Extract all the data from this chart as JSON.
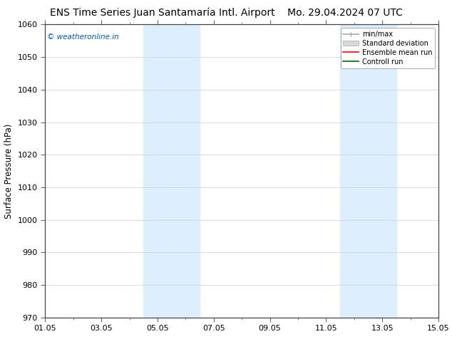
{
  "title_left": "ENS Time Series Juan Santamaría Intl. Airport",
  "title_right": "Mo. 29.04.2024 07 UTC",
  "ylabel": "Surface Pressure (hPa)",
  "xlabel": "",
  "ylim": [
    970,
    1060
  ],
  "xlim": [
    0,
    14
  ],
  "yticks": [
    970,
    980,
    990,
    1000,
    1010,
    1020,
    1030,
    1040,
    1050,
    1060
  ],
  "xtick_major_positions": [
    0,
    2,
    4,
    6,
    8,
    10,
    12,
    14
  ],
  "xtick_minor_positions": [
    0,
    1,
    2,
    3,
    4,
    5,
    6,
    7,
    8,
    9,
    10,
    11,
    12,
    13,
    14
  ],
  "xtick_labels": [
    "01.05",
    "03.05",
    "05.05",
    "07.05",
    "09.05",
    "11.05",
    "13.05",
    "15.05"
  ],
  "shaded_bands": [
    {
      "x_start": 3.5,
      "x_end": 5.5
    },
    {
      "x_start": 10.5,
      "x_end": 12.5
    }
  ],
  "shaded_color": "#ddeeff",
  "watermark_text": "© weatheronline.in",
  "watermark_color": "#0055cc",
  "background_color": "#ffffff",
  "grid_color": "#cccccc",
  "title_fontsize": 10,
  "axis_fontsize": 8.5,
  "tick_fontsize": 8
}
